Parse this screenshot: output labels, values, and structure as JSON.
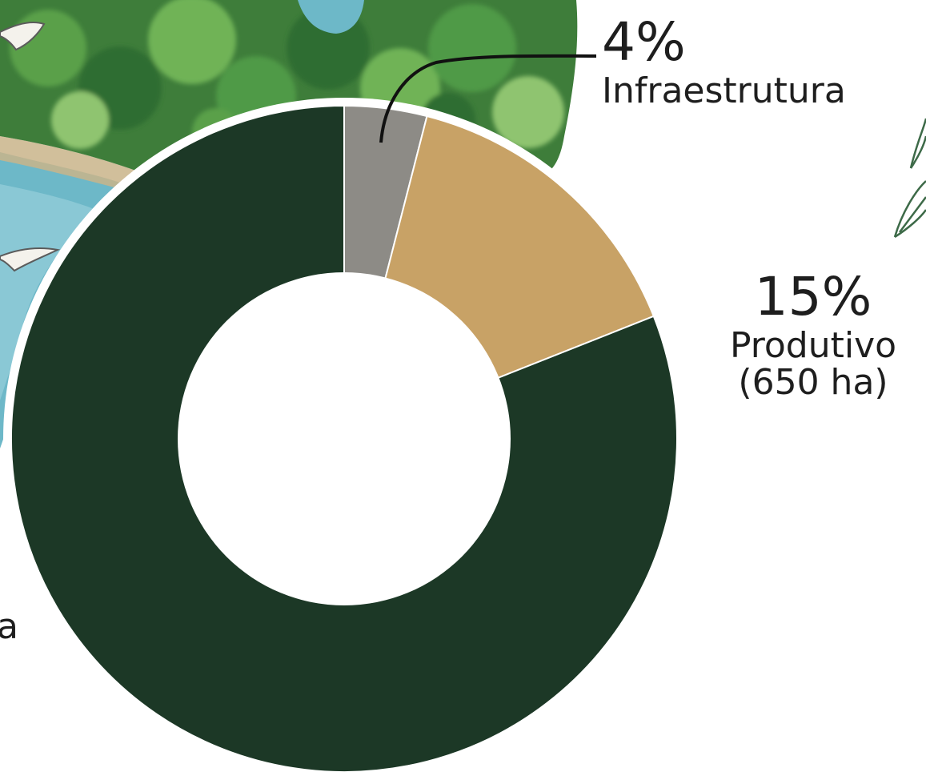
{
  "chart_data": {
    "type": "pie",
    "donut": true,
    "slices": [
      {
        "label": "Infraestrutura",
        "value_label": "4%",
        "value": 4,
        "sub_label": "",
        "color": "#8d8b86"
      },
      {
        "label": "Produtivo",
        "value_label": "15%",
        "value": 15,
        "sub_label": "(650 ha)",
        "color": "#c8a266"
      },
      {
        "label": "a",
        "value_label": "",
        "value": 81,
        "sub_label": "",
        "color": "#1c3826"
      }
    ],
    "cut_off_label_fragment": "a"
  },
  "colors": {
    "forest_dark": "#2f6d32",
    "forest_mid": "#4f9a46",
    "forest_light": "#8fc470",
    "water": "#6db8c8",
    "water_light": "#a3d6e0",
    "sketch_stroke": "#3d6a48"
  },
  "decor": {
    "background": "watercolor-forest-and-river",
    "leaf_icon": "leaf-sketch-icon",
    "bird_icon": "bird-icon"
  }
}
